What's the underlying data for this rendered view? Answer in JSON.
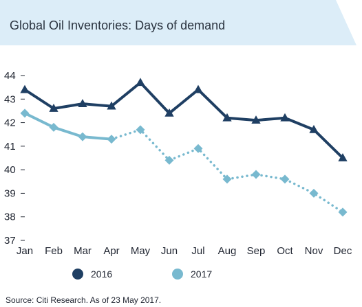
{
  "chart_data": {
    "type": "line",
    "title": "Global Oil Inventories: Days of demand",
    "categories": [
      "Jan",
      "Feb",
      "Mar",
      "Apr",
      "May",
      "Jun",
      "Jul",
      "Aug",
      "Sep",
      "Oct",
      "Nov",
      "Dec"
    ],
    "ylim": [
      37,
      44
    ],
    "yticks": [
      37,
      38,
      39,
      40,
      41,
      42,
      43,
      44
    ],
    "grid": false,
    "legend_position": "bottom",
    "series": [
      {
        "name": "2016",
        "color": "#1f3f63",
        "marker": "triangle",
        "values": [
          43.4,
          42.6,
          42.8,
          42.7,
          43.7,
          42.4,
          43.4,
          42.2,
          42.1,
          42.2,
          41.7,
          40.5
        ],
        "line_style": "solid"
      },
      {
        "name": "2017",
        "color": "#78b9cf",
        "marker": "diamond",
        "values": [
          42.4,
          41.8,
          41.4,
          41.3,
          41.7,
          40.4,
          40.9,
          39.6,
          39.8,
          39.6,
          39.0,
          38.2
        ],
        "line_style": "solid",
        "solid_through_index": 3,
        "projected_style": "dotted"
      }
    ],
    "source": "Source: Citi Research. As of 23 May 2017."
  }
}
